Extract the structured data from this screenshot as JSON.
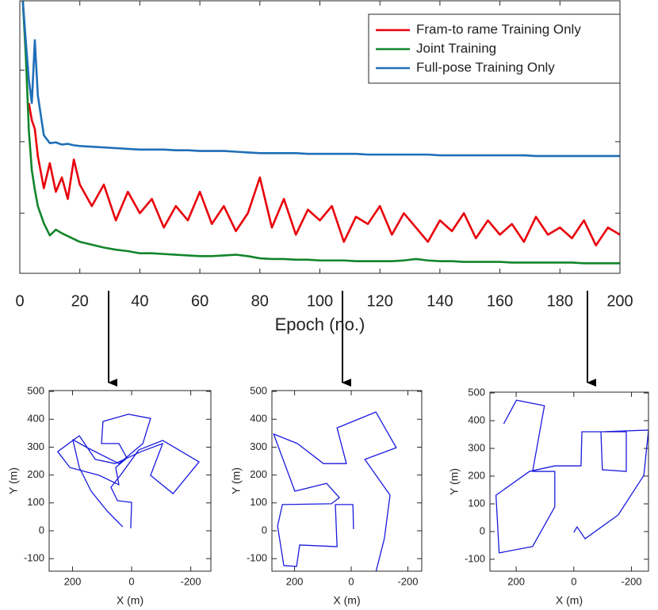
{
  "chart_data": [
    {
      "type": "line",
      "xlabel": "Epoch (no.)",
      "x": [
        1,
        2,
        3,
        4,
        5,
        6,
        8,
        10,
        12,
        14,
        16,
        18,
        20,
        24,
        28,
        32,
        36,
        40,
        44,
        48,
        52,
        56,
        60,
        64,
        68,
        72,
        76,
        80,
        84,
        88,
        92,
        96,
        100,
        104,
        108,
        112,
        116,
        120,
        124,
        128,
        132,
        136,
        140,
        144,
        148,
        152,
        156,
        160,
        164,
        168,
        172,
        176,
        180,
        184,
        188,
        192,
        196,
        200
      ],
      "series": [
        {
          "name": "Fram-to rame Training Only",
          "color": "#e8000b",
          "values": [
            null,
            null,
            2.54,
            2.3,
            2.18,
            1.8,
            1.35,
            1.7,
            1.3,
            1.5,
            1.2,
            1.75,
            1.4,
            1.1,
            1.4,
            0.9,
            1.3,
            1.0,
            1.2,
            0.8,
            1.1,
            0.9,
            1.3,
            0.85,
            1.1,
            0.75,
            1.0,
            1.5,
            0.8,
            1.2,
            0.7,
            1.05,
            0.9,
            1.1,
            0.6,
            0.95,
            0.85,
            1.1,
            0.7,
            1.0,
            0.8,
            0.6,
            0.9,
            0.75,
            1.0,
            0.65,
            0.9,
            0.7,
            0.85,
            0.6,
            0.95,
            0.7,
            0.8,
            0.65,
            0.9,
            0.55,
            0.8,
            0.7
          ]
        },
        {
          "name": "Joint Training",
          "color": "#12852a",
          "values": [
            3.97,
            3.2,
            2.16,
            1.6,
            1.33,
            1.1,
            0.86,
            0.69,
            0.77,
            0.72,
            0.68,
            0.64,
            0.6,
            0.56,
            0.52,
            0.49,
            0.47,
            0.44,
            0.44,
            0.43,
            0.42,
            0.41,
            0.4,
            0.4,
            0.41,
            0.42,
            0.4,
            0.37,
            0.36,
            0.36,
            0.35,
            0.35,
            0.34,
            0.34,
            0.34,
            0.33,
            0.33,
            0.33,
            0.33,
            0.34,
            0.36,
            0.34,
            0.33,
            0.33,
            0.32,
            0.32,
            0.32,
            0.32,
            0.31,
            0.31,
            0.31,
            0.31,
            0.31,
            0.31,
            0.3,
            0.3,
            0.3,
            0.3
          ]
        },
        {
          "name": "Full-pose Training Only",
          "color": "#1f6fb8",
          "values": [
            3.97,
            3.4,
            2.87,
            2.54,
            3.42,
            2.65,
            2.09,
            1.98,
            1.99,
            1.96,
            1.97,
            1.95,
            1.94,
            1.93,
            1.92,
            1.91,
            1.9,
            1.89,
            1.89,
            1.89,
            1.88,
            1.88,
            1.87,
            1.87,
            1.87,
            1.86,
            1.85,
            1.84,
            1.84,
            1.84,
            1.84,
            1.83,
            1.83,
            1.83,
            1.83,
            1.83,
            1.82,
            1.82,
            1.82,
            1.82,
            1.82,
            1.82,
            1.81,
            1.81,
            1.81,
            1.81,
            1.81,
            1.81,
            1.81,
            1.81,
            1.8,
            1.8,
            1.8,
            1.8,
            1.8,
            1.8,
            1.8,
            1.8
          ]
        }
      ],
      "xlim": [
        0,
        200
      ],
      "xticks": [
        0,
        20,
        40,
        60,
        80,
        100,
        120,
        140,
        160,
        180,
        200
      ],
      "ylim": [
        0.16,
        3.97
      ],
      "yticks": [
        1,
        2,
        3
      ],
      "ytick_labels": false,
      "legend": "upper right"
    },
    {
      "type": "line",
      "xlabel": "X (m)",
      "ylabel": "Y (m)",
      "x": [
        3,
        0,
        48,
        70,
        38,
        -24,
        -105,
        -228,
        -140,
        -64,
        -105,
        -32,
        56,
        123,
        177,
        250,
        209,
        110,
        43,
        54,
        16,
        43,
        102,
        97,
        11,
        -64,
        -38,
        43,
        150,
        199,
        177,
        137,
        83,
        30
      ],
      "series": [
        {
          "color": "#1a1adf",
          "values": [
            9,
            102,
            108,
            156,
            199,
            290,
            324,
            247,
            133,
            199,
            313,
            284,
            241,
            256,
            341,
            284,
            227,
            199,
            165,
            227,
            261,
            313,
            313,
            392,
            418,
            403,
            313,
            241,
            298,
            327,
            227,
            142,
            71,
            14
          ]
        }
      ],
      "xlim": [
        279,
        -268
      ],
      "xticks": [
        200,
        0,
        -200
      ],
      "ylim": [
        -145,
        503
      ],
      "yticks": [
        -100,
        0,
        100,
        200,
        300,
        400,
        500
      ]
    },
    {
      "type": "line",
      "xlabel": "X (m)",
      "ylabel": "Y (m)",
      "x": [
        -8,
        -6,
        56,
        50,
        182,
        193,
        238,
        260,
        243,
        70,
        42,
        87,
        199,
        274,
        190,
        98,
        17,
        50,
        -87,
        -159,
        -48,
        -137,
        -117,
        -87
      ],
      "series": [
        {
          "color": "#1a1adf",
          "values": [
            6,
            94,
            94,
            -57,
            -51,
            -128,
            -125,
            17,
            94,
            97,
            119,
            170,
            142,
            347,
            313,
            241,
            241,
            369,
            426,
            298,
            256,
            128,
            -28,
            -148
          ]
        }
      ],
      "xlim": [
        280,
        -249
      ],
      "xticks": [
        200,
        0,
        -200
      ],
      "ylim": [
        -145,
        503
      ],
      "yticks": [
        -100,
        0,
        100,
        200,
        300,
        400,
        500
      ]
    },
    {
      "type": "line",
      "xlabel": "X (m)",
      "ylabel": "Y (m)",
      "x": [
        243,
        199,
        102,
        143,
        66,
        66,
        143,
        259,
        270,
        154,
        66,
        -25,
        -28,
        -182,
        -182,
        -99,
        -94,
        -259,
        -243,
        -154,
        -39,
        -11,
        0
      ],
      "series": [
        {
          "color": "#1a1adf",
          "values": [
            389,
            474,
            454,
            217,
            217,
            89,
            -54,
            -77,
            131,
            217,
            237,
            237,
            360,
            360,
            217,
            223,
            360,
            366,
            203,
            60,
            -26,
            17,
            -3
          ]
        }
      ],
      "xlim": [
        291,
        -259
      ],
      "xticks": [
        200,
        0,
        -200
      ],
      "ylim": [
        -143,
        503
      ],
      "yticks": [
        -100,
        0,
        100,
        200,
        300,
        400,
        500
      ]
    }
  ]
}
